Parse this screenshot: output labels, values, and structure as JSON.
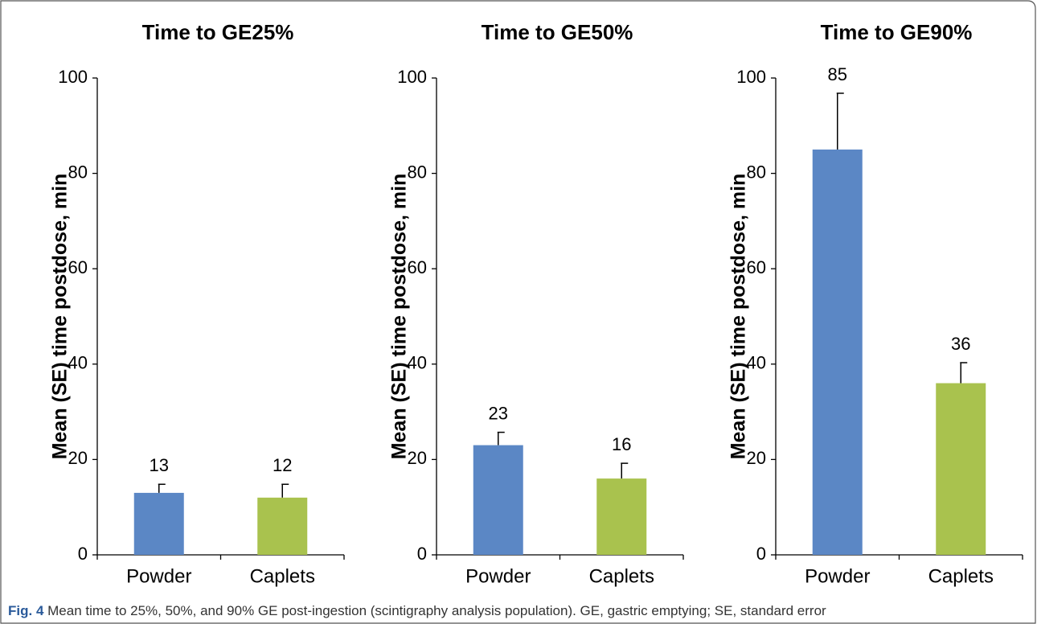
{
  "chart_data": [
    {
      "type": "bar",
      "title": "Time to GE25%",
      "y_label": "Mean (SE) time postdose, min",
      "categories": [
        "Powder",
        "Caplets"
      ],
      "values": [
        13,
        12
      ],
      "errors": [
        1.8,
        2.8
      ],
      "colors": [
        "#5b87c5",
        "#a9c24e"
      ],
      "ylim": [
        0,
        100
      ],
      "yticks": [
        0,
        20,
        40,
        60,
        80,
        100
      ]
    },
    {
      "type": "bar",
      "title": "Time to GE50%",
      "y_label": "Mean (SE) time postdose, min",
      "categories": [
        "Powder",
        "Caplets"
      ],
      "values": [
        23,
        16
      ],
      "errors": [
        2.7,
        3.2
      ],
      "colors": [
        "#5b87c5",
        "#a9c24e"
      ],
      "ylim": [
        0,
        100
      ],
      "yticks": [
        0,
        20,
        40,
        60,
        80,
        100
      ]
    },
    {
      "type": "bar",
      "title": "Time to GE90%",
      "y_label": "Mean (SE) time postdose, min",
      "categories": [
        "Powder",
        "Caplets"
      ],
      "values": [
        85,
        36
      ],
      "errors": [
        11.8,
        4.3
      ],
      "colors": [
        "#5b87c5",
        "#a9c24e"
      ],
      "ylim": [
        0,
        100
      ],
      "yticks": [
        0,
        20,
        40,
        60,
        80,
        100
      ]
    }
  ],
  "caption": {
    "label": "Fig. 4",
    "text": "Mean time to 25%, 50%, and 90% GE post-ingestion (scintigraphy analysis population). GE, gastric emptying; SE, standard error"
  }
}
